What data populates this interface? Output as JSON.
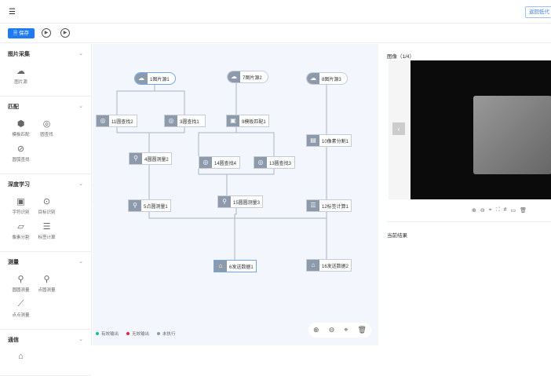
{
  "header": {
    "menu_icon": "menu-fold-icon",
    "back_label": "返回低代"
  },
  "toolbar": {
    "save_label": "保存",
    "run_icon": "play-circle-icon",
    "run_loop_icon": "replay-circle-icon"
  },
  "sidebar": {
    "sections": [
      {
        "title": "图片采集",
        "items": [
          {
            "label": "图片源",
            "icon": "cloud-image-icon"
          }
        ]
      },
      {
        "title": "匹配",
        "items": [
          {
            "label": "模板匹配",
            "icon": "cube-icon"
          },
          {
            "label": "圆查找",
            "icon": "circle-search-icon"
          },
          {
            "label": "圆弧查找",
            "icon": "arc-search-icon"
          }
        ]
      },
      {
        "title": "深度学习",
        "items": [
          {
            "label": "字符识别",
            "icon": "ocr-icon"
          },
          {
            "label": "目标识别",
            "icon": "target-icon"
          },
          {
            "label": "像素分割",
            "icon": "segment-icon"
          },
          {
            "label": "标签计算",
            "icon": "label-calc-icon"
          }
        ]
      },
      {
        "title": "测量",
        "items": [
          {
            "label": "圆圆测量",
            "icon": "circle-circle-measure-icon"
          },
          {
            "label": "点圆测量",
            "icon": "point-circle-measure-icon"
          },
          {
            "label": "点点测量",
            "icon": "point-point-measure-icon"
          }
        ]
      },
      {
        "title": "通信",
        "items": [
          {
            "label": "",
            "icon": "send-data-icon"
          }
        ]
      }
    ]
  },
  "nodes": [
    {
      "id": "n1",
      "label": "1图片源1",
      "icon": "☁"
    },
    {
      "id": "n7",
      "label": "7图片源2",
      "icon": "☁"
    },
    {
      "id": "n8",
      "label": "8图片源3",
      "icon": "☁"
    },
    {
      "id": "n11",
      "label": "11圆查找2",
      "icon": "◎"
    },
    {
      "id": "n3",
      "label": "3圆查找1",
      "icon": "◎"
    },
    {
      "id": "n9",
      "label": "9模板匹配1",
      "icon": "▣"
    },
    {
      "id": "n10",
      "label": "10像素分割1",
      "icon": "▤"
    },
    {
      "id": "n4",
      "label": "4圆圆测量2",
      "icon": "⚲"
    },
    {
      "id": "n14",
      "label": "14圆查找4",
      "icon": "◎"
    },
    {
      "id": "n13",
      "label": "13圆查找3",
      "icon": "◎"
    },
    {
      "id": "n5",
      "label": "5点圆测量1",
      "icon": "⚲"
    },
    {
      "id": "n15",
      "label": "15圆圆测量3",
      "icon": "⚲"
    },
    {
      "id": "n12",
      "label": "12标签计算1",
      "icon": "☰"
    },
    {
      "id": "n6",
      "label": "6发送数据1",
      "icon": "⌂"
    },
    {
      "id": "n16",
      "label": "16发送数据2",
      "icon": "⌂"
    }
  ],
  "legend": [
    {
      "label": "有效输出",
      "color": "#13c2a3"
    },
    {
      "label": "无效输出",
      "color": "#f5222d"
    },
    {
      "label": "未执行",
      "color": "#8c9aab"
    }
  ],
  "canvas_tools": [
    "zoom-in-icon",
    "zoom-out-icon",
    "locate-icon",
    "delete-icon"
  ],
  "right": {
    "image_title": "图像（1/4）",
    "result_title": "当前结果",
    "image_tools": [
      "zoom-in-icon",
      "zoom-out-icon",
      "locate-icon",
      "fullscreen-icon",
      "grid-icon",
      "image-icon",
      "delete-icon"
    ]
  }
}
